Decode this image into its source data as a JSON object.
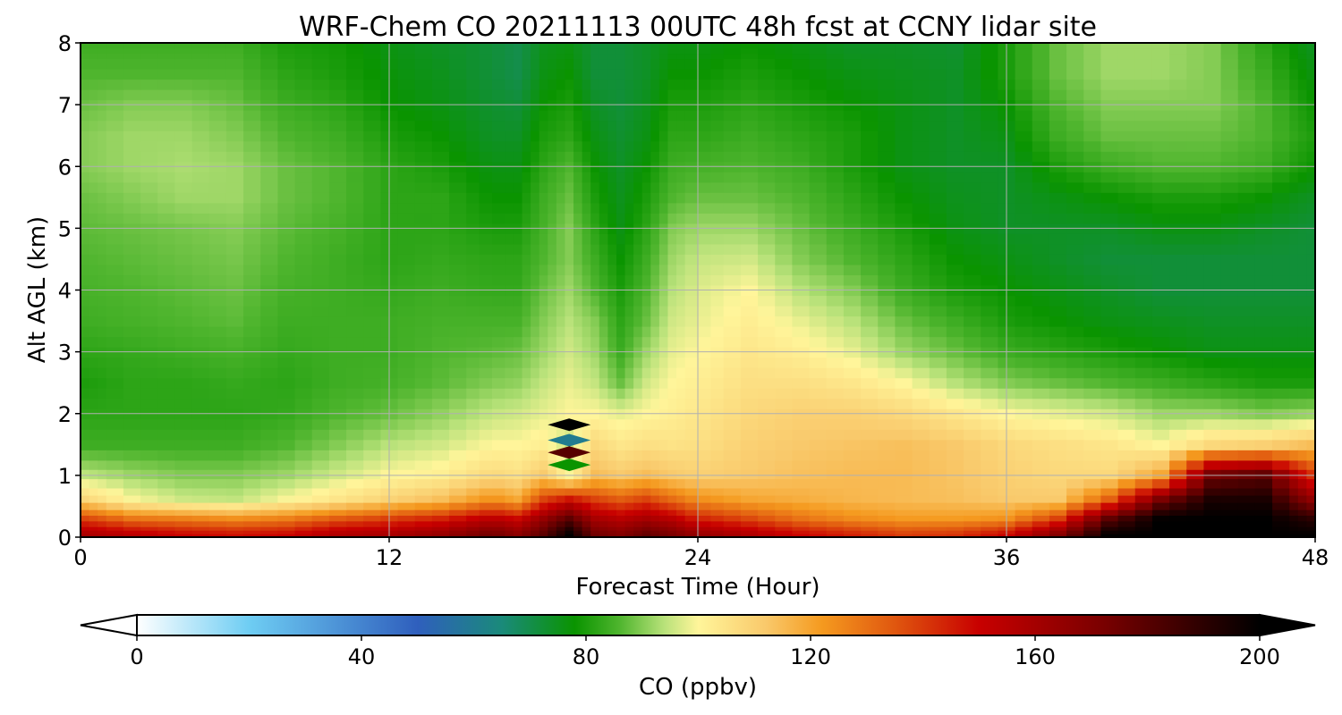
{
  "chart_data": {
    "type": "heatmap",
    "title": "WRF-Chem CO  20211113 00UTC 48h fcst at CCNY lidar site",
    "xlabel": "Forecast Time (Hour)",
    "ylabel": "Alt AGL (km)",
    "xlim": [
      0,
      48
    ],
    "ylim": [
      0,
      8
    ],
    "x_ticks": [
      0,
      12,
      24,
      36,
      48
    ],
    "y_ticks": [
      0,
      1,
      2,
      3,
      4,
      5,
      6,
      7,
      8
    ],
    "grid": true,
    "colorbar": {
      "label": "CO  (ppbv)",
      "range": [
        0,
        200
      ],
      "ticks": [
        0,
        40,
        80,
        120,
        160,
        200
      ],
      "extend": "both",
      "stops": [
        {
          "v": 0,
          "c": "#ffffff"
        },
        {
          "v": 20,
          "c": "#6ecdf3"
        },
        {
          "v": 50,
          "c": "#2f5fbd"
        },
        {
          "v": 65,
          "c": "#1a8a7a"
        },
        {
          "v": 78,
          "c": "#0a9400"
        },
        {
          "v": 86,
          "c": "#4fb52e"
        },
        {
          "v": 94,
          "c": "#b9e27a"
        },
        {
          "v": 100,
          "c": "#fff59a"
        },
        {
          "v": 112,
          "c": "#f9c96b"
        },
        {
          "v": 122,
          "c": "#f59a1f"
        },
        {
          "v": 135,
          "c": "#e0570f"
        },
        {
          "v": 150,
          "c": "#c80000"
        },
        {
          "v": 172,
          "c": "#7a0000"
        },
        {
          "v": 200,
          "c": "#000000"
        }
      ]
    },
    "time_hours": [
      0,
      2,
      4,
      6,
      8,
      10,
      12,
      14,
      16,
      17,
      18,
      19,
      20,
      21,
      22,
      23,
      24,
      26,
      28,
      30,
      32,
      34,
      36,
      38,
      40,
      42,
      44,
      46,
      48
    ],
    "altitudes_km": [
      0.05,
      0.3,
      0.6,
      1.0,
      1.5,
      2.0,
      2.5,
      3.0,
      3.5,
      4.0,
      4.5,
      5.0,
      5.5,
      6.0,
      6.5,
      7.0,
      7.5,
      8.0
    ],
    "co_ppbv_by_time": [
      [
        160,
        140,
        110,
        95,
        84,
        82,
        80,
        82,
        84,
        85,
        86,
        87,
        88,
        90,
        90,
        88,
        86,
        84
      ],
      [
        155,
        130,
        100,
        92,
        84,
        82,
        82,
        83,
        85,
        86,
        87,
        88,
        90,
        92,
        92,
        90,
        86,
        84
      ],
      [
        150,
        128,
        96,
        90,
        84,
        82,
        82,
        84,
        86,
        87,
        88,
        89,
        92,
        93,
        92,
        90,
        86,
        84
      ],
      [
        148,
        125,
        95,
        90,
        84,
        82,
        83,
        85,
        87,
        88,
        89,
        90,
        92,
        92,
        90,
        88,
        86,
        84
      ],
      [
        150,
        128,
        100,
        92,
        86,
        83,
        82,
        83,
        84,
        85,
        86,
        87,
        88,
        88,
        86,
        84,
        82,
        80
      ],
      [
        158,
        135,
        105,
        96,
        90,
        86,
        84,
        84,
        84,
        84,
        84,
        85,
        86,
        86,
        84,
        82,
        80,
        79
      ],
      [
        160,
        140,
        110,
        100,
        94,
        88,
        85,
        84,
        84,
        83,
        82,
        82,
        82,
        82,
        80,
        78,
        77,
        76
      ],
      [
        165,
        145,
        115,
        102,
        96,
        91,
        87,
        86,
        85,
        84,
        83,
        82,
        82,
        80,
        78,
        76,
        75,
        74
      ],
      [
        175,
        155,
        125,
        108,
        100,
        95,
        90,
        87,
        85,
        83,
        82,
        80,
        78,
        76,
        74,
        73,
        72,
        72
      ],
      [
        168,
        150,
        120,
        106,
        100,
        96,
        91,
        88,
        85,
        83,
        82,
        80,
        78,
        76,
        74,
        72,
        70,
        70
      ],
      [
        180,
        165,
        140,
        112,
        102,
        98,
        95,
        92,
        90,
        88,
        86,
        85,
        84,
        82,
        80,
        78,
        76,
        75
      ],
      [
        200,
        180,
        150,
        100,
        95,
        100,
        98,
        96,
        94,
        92,
        90,
        90,
        88,
        86,
        82,
        80,
        78,
        76
      ],
      [
        175,
        160,
        140,
        115,
        108,
        100,
        95,
        92,
        90,
        86,
        84,
        82,
        80,
        78,
        76,
        74,
        72,
        72
      ],
      [
        170,
        155,
        135,
        112,
        104,
        98,
        88,
        84,
        82,
        80,
        78,
        76,
        75,
        74,
        73,
        72,
        72,
        72
      ],
      [
        178,
        160,
        140,
        115,
        106,
        100,
        96,
        92,
        88,
        86,
        84,
        82,
        80,
        78,
        76,
        75,
        74,
        74
      ],
      [
        172,
        155,
        132,
        112,
        105,
        102,
        100,
        98,
        96,
        94,
        92,
        90,
        86,
        84,
        82,
        80,
        78,
        76
      ],
      [
        165,
        145,
        125,
        110,
        106,
        104,
        102,
        100,
        98,
        97,
        95,
        92,
        88,
        85,
        82,
        80,
        78,
        76
      ],
      [
        158,
        138,
        120,
        112,
        110,
        108,
        106,
        104,
        102,
        100,
        96,
        92,
        88,
        86,
        84,
        82,
        80,
        78
      ],
      [
        150,
        130,
        118,
        114,
        112,
        110,
        106,
        102,
        98,
        94,
        90,
        88,
        86,
        84,
        82,
        80,
        78,
        76
      ],
      [
        145,
        125,
        116,
        115,
        113,
        110,
        104,
        98,
        94,
        90,
        86,
        84,
        82,
        80,
        80,
        78,
        76,
        74
      ],
      [
        140,
        122,
        115,
        115,
        114,
        108,
        100,
        92,
        88,
        84,
        82,
        80,
        78,
        76,
        76,
        76,
        75,
        74
      ],
      [
        142,
        122,
        114,
        113,
        112,
        104,
        94,
        88,
        84,
        80,
        78,
        76,
        75,
        74,
        74,
        74,
        74,
        73
      ],
      [
        150,
        124,
        112,
        110,
        108,
        100,
        90,
        84,
        80,
        78,
        76,
        74,
        74,
        74,
        76,
        78,
        80,
        80
      ],
      [
        170,
        140,
        112,
        108,
        106,
        98,
        88,
        82,
        78,
        76,
        74,
        74,
        76,
        80,
        84,
        86,
        88,
        88
      ],
      [
        200,
        180,
        135,
        108,
        104,
        96,
        86,
        80,
        76,
        74,
        72,
        74,
        78,
        84,
        88,
        90,
        92,
        92
      ],
      [
        200,
        200,
        175,
        120,
        100,
        92,
        84,
        78,
        75,
        72,
        72,
        76,
        80,
        86,
        88,
        90,
        92,
        92
      ],
      [
        200,
        200,
        195,
        175,
        108,
        92,
        82,
        76,
        74,
        72,
        72,
        76,
        80,
        86,
        88,
        90,
        90,
        90
      ],
      [
        200,
        200,
        195,
        180,
        110,
        90,
        80,
        76,
        74,
        72,
        72,
        74,
        78,
        84,
        86,
        86,
        84,
        82
      ],
      [
        200,
        190,
        165,
        140,
        115,
        92,
        80,
        76,
        74,
        72,
        72,
        72,
        74,
        78,
        80,
        78,
        76,
        74
      ]
    ],
    "annotations": [
      {
        "t": 19.0,
        "z": 1.82,
        "co_ppbv": 200
      },
      {
        "t": 19.0,
        "z": 1.57,
        "co_ppbv": 60
      },
      {
        "t": 19.0,
        "z": 1.37,
        "co_ppbv": 180
      },
      {
        "t": 19.0,
        "z": 1.17,
        "co_ppbv": 78
      }
    ]
  }
}
